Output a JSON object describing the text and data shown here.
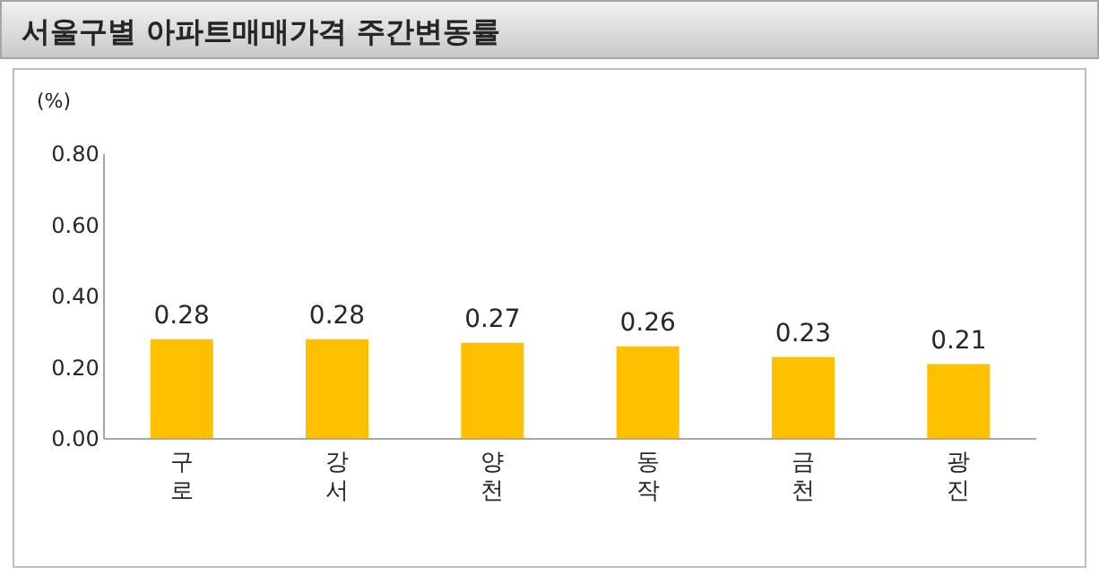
{
  "chart_data": {
    "type": "bar",
    "title": "서울구별 아파트매매가격 주간변동률",
    "ylabel": "(%)",
    "categories": [
      "구로",
      "강서",
      "양천",
      "동작",
      "금천",
      "광진"
    ],
    "values": [
      0.28,
      0.28,
      0.27,
      0.26,
      0.23,
      0.21
    ],
    "color": "#ffc000",
    "ylim": [
      0,
      0.8
    ],
    "yticks": [
      {
        "value": 0,
        "label": "0.00"
      },
      {
        "value": 0.2,
        "label": "0.20"
      },
      {
        "value": 0.4,
        "label": "0.40"
      },
      {
        "value": 0.6,
        "label": "0.60"
      },
      {
        "value": 0.8,
        "label": "0.80"
      }
    ],
    "data_labels": true
  }
}
